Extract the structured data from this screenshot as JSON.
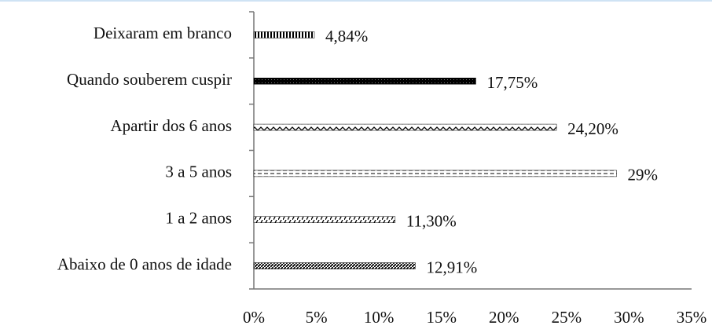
{
  "chart_data": {
    "type": "bar",
    "orientation": "horizontal",
    "categories": [
      "Deixaram em branco",
      "Quando souberem cuspir",
      "Apartir dos 6 anos",
      "3 a 5 anos",
      "1 a 2 anos",
      "Abaixo de 0 anos de idade"
    ],
    "values": [
      4.84,
      17.75,
      24.2,
      29,
      11.3,
      12.91
    ],
    "value_labels": [
      "4,84%",
      "17,75%",
      "24,20%",
      "29%",
      "11,30%",
      "12,91%"
    ],
    "color": "#000000",
    "xlim": [
      0,
      35
    ],
    "xticks": [
      {
        "value": 0,
        "label": "0%"
      },
      {
        "value": 5,
        "label": "5%"
      },
      {
        "value": 10,
        "label": "10%"
      },
      {
        "value": 15,
        "label": "15%"
      },
      {
        "value": 20,
        "label": "20%"
      },
      {
        "value": 25,
        "label": "25%"
      },
      {
        "value": 30,
        "label": "30%"
      },
      {
        "value": 35,
        "label": "35%"
      }
    ],
    "grid": false
  }
}
